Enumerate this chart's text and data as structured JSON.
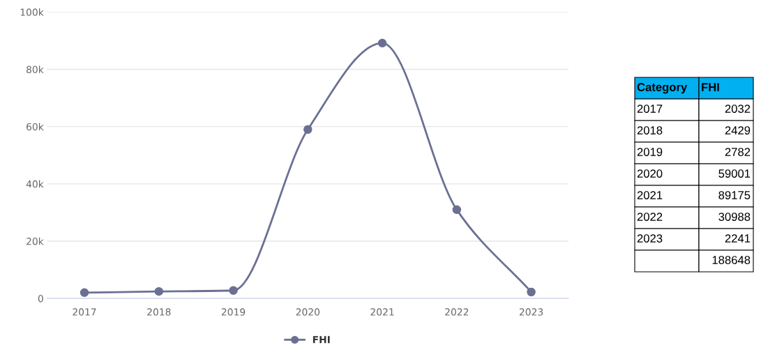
{
  "chart_data": {
    "type": "line",
    "categories": [
      "2017",
      "2018",
      "2019",
      "2020",
      "2021",
      "2022",
      "2023"
    ],
    "series": [
      {
        "name": "FHI",
        "color": "#6b7093",
        "values": [
          2032,
          2429,
          2782,
          59001,
          89175,
          30988,
          2241
        ]
      }
    ],
    "ylim": [
      0,
      100000
    ],
    "yticks": [
      {
        "value": 0,
        "label": "0"
      },
      {
        "value": 20000,
        "label": "20k"
      },
      {
        "value": 40000,
        "label": "40k"
      },
      {
        "value": 60000,
        "label": "60k"
      },
      {
        "value": 80000,
        "label": "80k"
      },
      {
        "value": 100000,
        "label": "100k"
      }
    ],
    "grid": "y",
    "legend": "bottom",
    "marker": "circle",
    "line_style": "solid",
    "annotations": [
      "Category",
      "2032",
      "2429",
      "2782",
      "59001",
      "89175",
      "30988",
      "2241",
      "188648"
    ]
  }
}
